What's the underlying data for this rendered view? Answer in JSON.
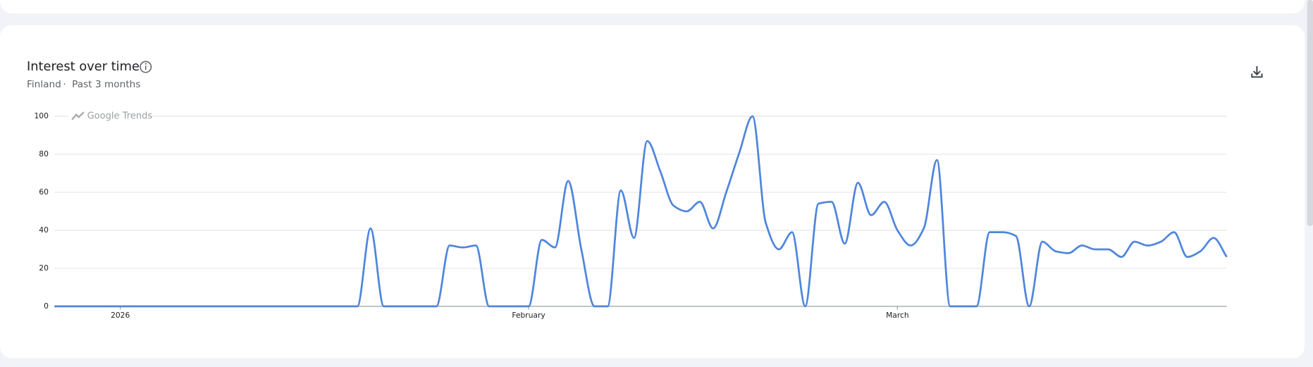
{
  "chart_data": {
    "type": "line",
    "title": "Interest over time",
    "subtitle": "Finland",
    "period": "Past 3 months",
    "watermark": "Google Trends",
    "color": "#4f86dd",
    "grid": true,
    "values": [
      0,
      0,
      0,
      0,
      0,
      0,
      0,
      0,
      0,
      0,
      0,
      0,
      0,
      0,
      0,
      0,
      0,
      0,
      0,
      0,
      0,
      0,
      0,
      0,
      41,
      0,
      0,
      0,
      0,
      0,
      32,
      31,
      32,
      0,
      0,
      0,
      0,
      35,
      31,
      66,
      30,
      0,
      0,
      61,
      36,
      87,
      71,
      53,
      50,
      55,
      41,
      60,
      81,
      100,
      44,
      30,
      39,
      0,
      54,
      55,
      33,
      65,
      48,
      55,
      40,
      32,
      41,
      77,
      0,
      0,
      0,
      39,
      39,
      37,
      0,
      34,
      29,
      28,
      32,
      30,
      30,
      26,
      34,
      32,
      34,
      39,
      26,
      29,
      36,
      26
    ],
    "xlim": [
      0,
      89
    ],
    "xticks": [
      {
        "value": 5,
        "label": "2026"
      },
      {
        "value": 36,
        "label": "February"
      },
      {
        "value": 64,
        "label": "March"
      }
    ],
    "ylim": [
      0,
      100
    ],
    "yticks": [
      0,
      20,
      40,
      60,
      80,
      100
    ]
  }
}
